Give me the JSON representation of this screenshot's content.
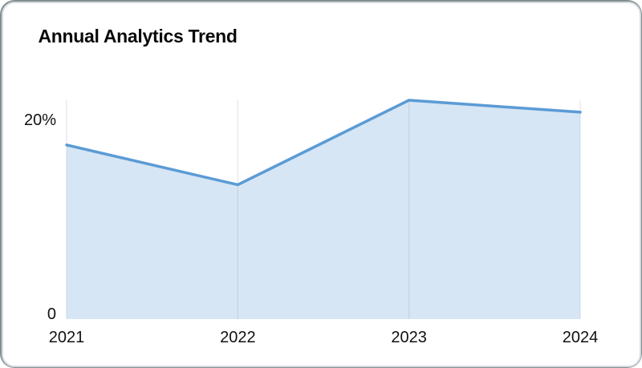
{
  "card": {
    "title": "Annual Analytics Trend"
  },
  "colors": {
    "line": "#5B9BD5",
    "area_fill": "rgba(91, 155, 213, 0.25)",
    "gridline": "#e3e6e8",
    "text": "#111111",
    "card_border": "#d6dadd",
    "card_ring": "#31424a",
    "background": "#ffffff"
  },
  "chart_data": {
    "type": "area",
    "categories": [
      "2021",
      "2022",
      "2023",
      "2024"
    ],
    "values": [
      17.5,
      13.5,
      22,
      20.8
    ],
    "title": "Annual Analytics Trend",
    "xlabel": "",
    "ylabel": "",
    "ylim": [
      0,
      22
    ],
    "yticks": [
      {
        "value": 0,
        "label": "0"
      },
      {
        "value": 20,
        "label": "20%"
      }
    ],
    "grid": "vertical-only",
    "legend": "none"
  }
}
